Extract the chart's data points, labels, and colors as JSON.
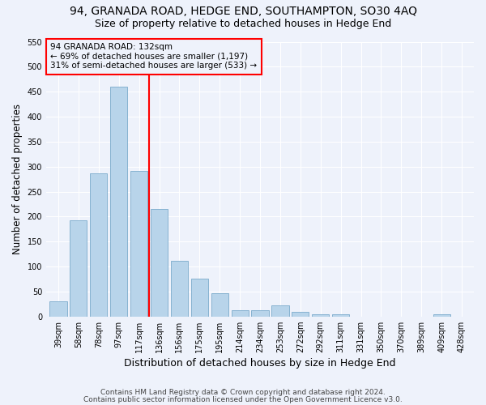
{
  "title": "94, GRANADA ROAD, HEDGE END, SOUTHAMPTON, SO30 4AQ",
  "subtitle": "Size of property relative to detached houses in Hedge End",
  "xlabel": "Distribution of detached houses by size in Hedge End",
  "ylabel": "Number of detached properties",
  "categories": [
    "39sqm",
    "58sqm",
    "78sqm",
    "97sqm",
    "117sqm",
    "136sqm",
    "156sqm",
    "175sqm",
    "195sqm",
    "214sqm",
    "234sqm",
    "253sqm",
    "272sqm",
    "292sqm",
    "311sqm",
    "331sqm",
    "350sqm",
    "370sqm",
    "389sqm",
    "409sqm",
    "428sqm"
  ],
  "values": [
    30,
    192,
    287,
    460,
    292,
    215,
    111,
    75,
    47,
    13,
    13,
    22,
    10,
    5,
    5,
    0,
    0,
    0,
    0,
    5,
    0
  ],
  "bar_color": "#b8d4ea",
  "bar_edge_color": "#7aaacb",
  "annotation_line1": "94 GRANADA ROAD: 132sqm",
  "annotation_line2": "← 69% of detached houses are smaller (1,197)",
  "annotation_line3": "31% of semi-detached houses are larger (533) →",
  "ylim": [
    0,
    550
  ],
  "footnote1": "Contains HM Land Registry data © Crown copyright and database right 2024.",
  "footnote2": "Contains public sector information licensed under the Open Government Licence v3.0.",
  "background_color": "#eef2fb",
  "grid_color": "#ffffff",
  "title_fontsize": 10,
  "subtitle_fontsize": 9,
  "xlabel_fontsize": 9,
  "ylabel_fontsize": 8.5,
  "footnote_fontsize": 6.5,
  "tick_fontsize": 7,
  "annot_fontsize": 7.5
}
